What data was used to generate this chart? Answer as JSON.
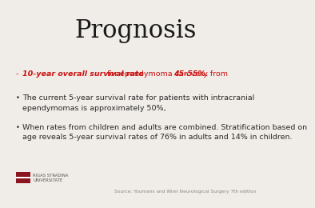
{
  "title": "Prognosis",
  "title_fontsize": 22,
  "title_color": "#1a1a1a",
  "bg_color": "#f0ede8",
  "bullet1_italic_bold": "10-year overall survival rate",
  "bullet1_mid": " for ependymoma can vary from ",
  "bullet1_end": "45-55%.",
  "bullet1_color": "#cc1111",
  "bullet2": "The current 5-year survival rate for patients with intracranial\nependymomas is approximately 50%,",
  "bullet3": "When rates from children and adults are combined. Stratification based on\nage reveals 5-year survival rates of 76% in adults and 14% in children.",
  "bullet_color": "#2a2a2a",
  "bullet_fontsize": 6.8,
  "bullet_dash_color": "#cc1111",
  "source_text": "Source: Youmans and Winn Neurological Surgery 7th edition",
  "source_fontsize": 4.2,
  "logo_text1": "RIGAS STRADINA",
  "logo_text2": "UNIVERSITATE",
  "logo_color": "#8b1520",
  "logo_bar_color": "#8b1520"
}
